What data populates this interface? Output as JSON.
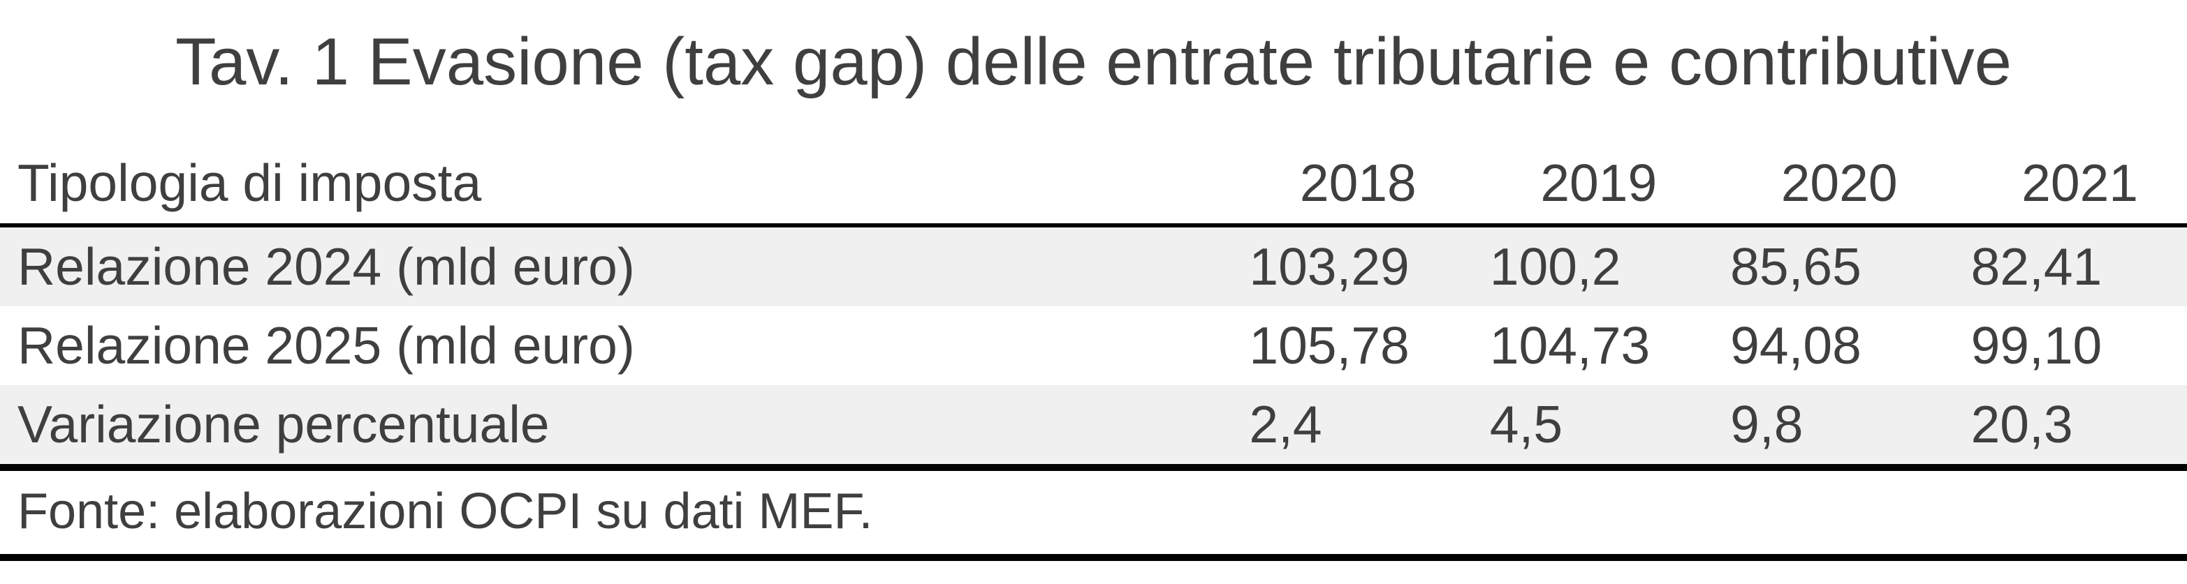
{
  "title": "Tav. 1 Evasione (tax gap) delle entrate tributarie e contributive",
  "table": {
    "row_header_label": "Tipologia di imposta",
    "year_columns": [
      "2018",
      "2019",
      "2020",
      "2021"
    ],
    "rows": [
      {
        "label": "Relazione 2024 (mld euro)",
        "values": [
          "103,29",
          "100,2",
          "85,65",
          "82,41"
        ]
      },
      {
        "label": "Relazione 2025 (mld euro)",
        "values": [
          "105,78",
          "104,73",
          "94,08",
          "99,10"
        ]
      },
      {
        "label": "Variazione percentuale",
        "values": [
          "2,4",
          "4,5",
          "9,8",
          "20,3"
        ]
      }
    ]
  },
  "source_note": "Fonte: elaborazioni OCPI su dati MEF.",
  "colors": {
    "text": "#3f3f3f",
    "stripe": "#f0f0f0",
    "rule": "#000000",
    "background": "#ffffff"
  },
  "chart_data": {
    "type": "table",
    "title": "Tav. 1 Evasione (tax gap) delle entrate tributarie e contributive",
    "columns": [
      "Tipologia di imposta",
      "2018",
      "2019",
      "2020",
      "2021"
    ],
    "rows": [
      {
        "label": "Relazione 2024 (mld euro)",
        "values": [
          103.29,
          100.2,
          85.65,
          82.41
        ]
      },
      {
        "label": "Relazione 2025 (mld euro)",
        "values": [
          105.78,
          104.73,
          94.08,
          99.1
        ]
      },
      {
        "label": "Variazione percentuale",
        "values": [
          2.4,
          4.5,
          9.8,
          20.3
        ]
      }
    ],
    "number_format": "decimal-comma",
    "source": "Fonte: elaborazioni OCPI su dati MEF.",
    "layout": {
      "striped_rows": [
        1,
        3
      ],
      "header_rule": true,
      "bottom_rule": true
    }
  }
}
